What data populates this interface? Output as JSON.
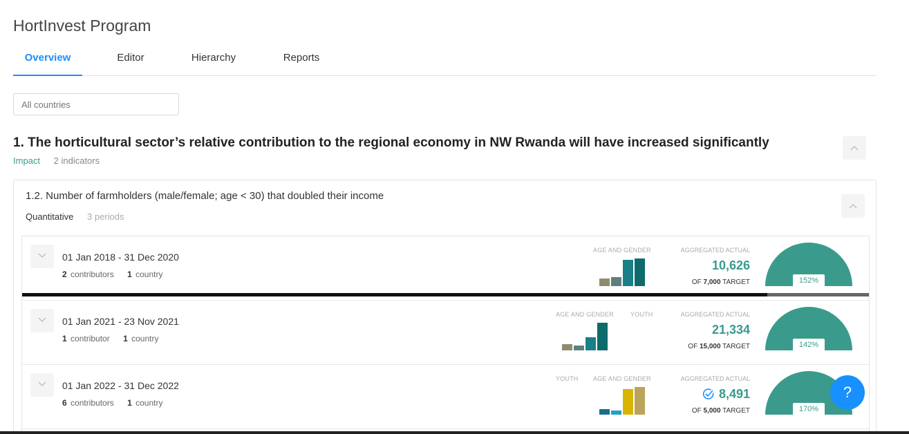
{
  "program": {
    "title": "HortInvest Program"
  },
  "tabs": [
    {
      "label": "Overview",
      "active": true
    },
    {
      "label": "Editor",
      "active": false
    },
    {
      "label": "Hierarchy",
      "active": false
    },
    {
      "label": "Reports",
      "active": false
    }
  ],
  "filter": {
    "placeholder": "All countries"
  },
  "result": {
    "title": "1. The horticultural sector’s relative contribution to the regional economy in NW Rwanda will have increased significantly",
    "type": "Impact",
    "indicator_count": "2 indicators"
  },
  "indicator": {
    "title": "1.2. Number of farmholders (male/female; age < 30) that doubled their income",
    "type": "Quantitative",
    "period_count": "3 periods"
  },
  "periods": [
    {
      "dates": "01 Jan 2018 - 31 Dec 2020",
      "contributors_num": "2",
      "contributors_label": "contributors",
      "countries_num": "1",
      "countries_label": "country",
      "disaggregations": [
        "AGE AND GENDER"
      ],
      "aggregated_label": "AGGREGATED ACTUAL",
      "actual": "10,626",
      "target_prefix": "OF",
      "target": "7,000",
      "target_suffix": "TARGET",
      "percent": "152%",
      "progress_fraction": 0.88
    },
    {
      "dates": "01 Jan 2021 - 23 Nov 2021",
      "contributors_num": "1",
      "contributors_label": "contributor",
      "countries_num": "1",
      "countries_label": "country",
      "disaggregations": [
        "AGE AND GENDER",
        "YOUTH"
      ],
      "aggregated_label": "AGGREGATED ACTUAL",
      "actual": "21,334",
      "target_prefix": "OF",
      "target": "15,000",
      "target_suffix": "TARGET",
      "percent": "142%"
    },
    {
      "dates": "01 Jan 2022 - 31 Dec 2022",
      "contributors_num": "6",
      "contributors_label": "contributors",
      "countries_num": "1",
      "countries_label": "country",
      "disaggregations": [
        "YOUTH",
        "AGE AND GENDER"
      ],
      "aggregated_label": "AGGREGATED ACTUAL",
      "actual": "8,491",
      "target_prefix": "OF",
      "target": "5,000",
      "target_suffix": "TARGET",
      "percent": "170%"
    }
  ],
  "help": {
    "label": "?"
  },
  "colors": {
    "accent": "#1890ff",
    "teal": "#3a9b8c",
    "olive": "#8f8c6e",
    "slate": "#5e7f80",
    "dark_teal": "#0e6b6b",
    "mid_teal": "#1a7f86",
    "gold": "#d8b400",
    "khaki": "#b9a45a",
    "cyan": "#1ea1c8",
    "deep_cyan": "#1a6e8a"
  }
}
